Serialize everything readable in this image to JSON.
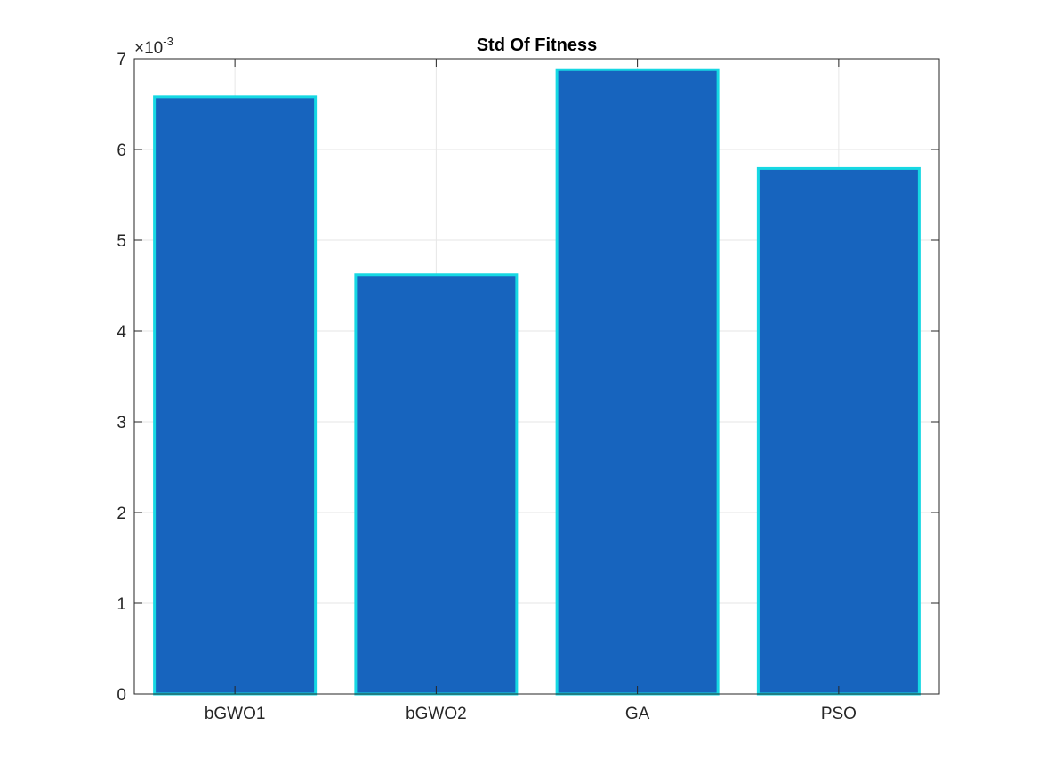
{
  "colors": {
    "bar_fill": "#1764BE",
    "bar_edge": "#16D8E3",
    "grid": "#E6E6E6",
    "axis": "#262626",
    "background": "#FFFFFF"
  },
  "chart_data": {
    "type": "bar",
    "title": "Std Of Fitness",
    "xlabel": "",
    "ylabel": "",
    "categories": [
      "bGWO1",
      "bGWO2",
      "GA",
      "PSO"
    ],
    "values": [
      0.00658,
      0.00462,
      0.00688,
      0.00579
    ],
    "ylim": [
      0,
      0.007
    ],
    "y_ticks": [
      0,
      1,
      2,
      3,
      4,
      5,
      6,
      7
    ],
    "y_tick_labels": [
      "0",
      "1",
      "2",
      "3",
      "4",
      "5",
      "6",
      "7"
    ],
    "y_exponent_base": "×10",
    "y_exponent_power": "-3",
    "grid": true,
    "box": true,
    "legend": "none"
  }
}
